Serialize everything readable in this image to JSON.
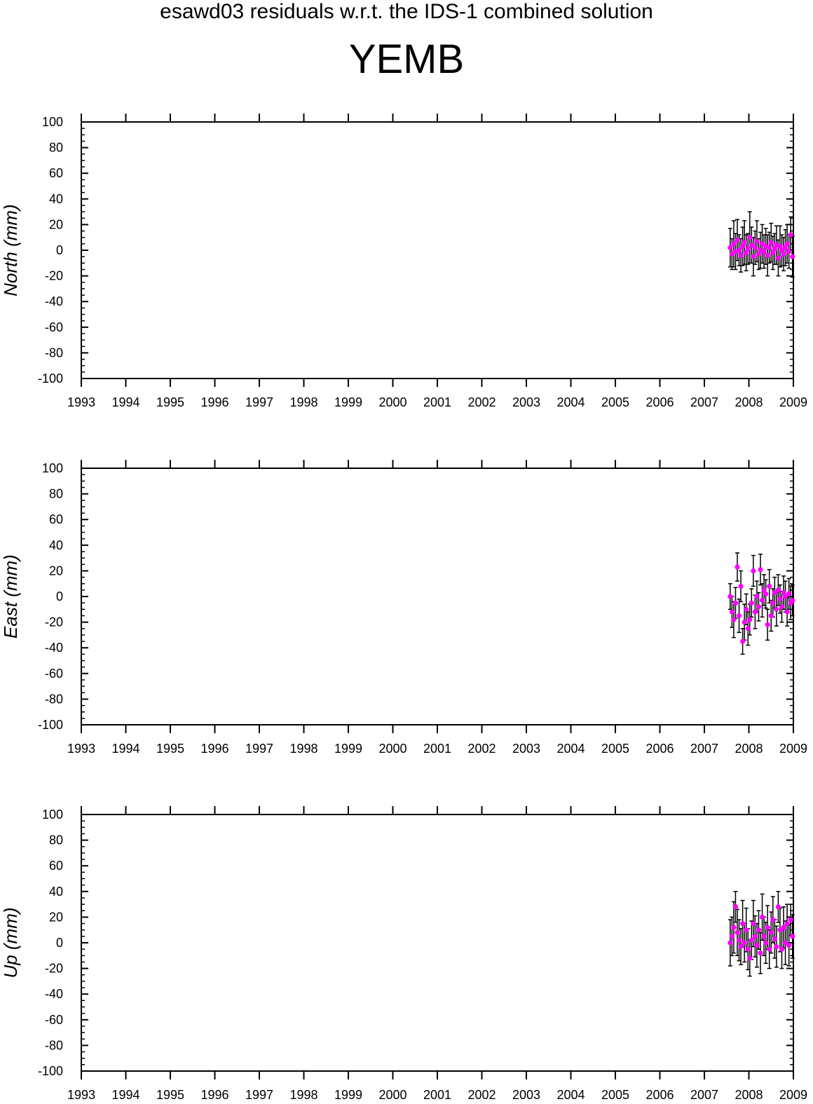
{
  "header": {
    "title": "esawd03 residuals w.r.t. the IDS-1 combined solution",
    "station": "YEMB"
  },
  "colors": {
    "point": "#ff00ff",
    "errorbar": "#000000",
    "axis": "#000000"
  },
  "chart_data": [
    {
      "type": "scatter",
      "ylabel": "North (mm)",
      "xlim": [
        1993,
        2009
      ],
      "ylim": [
        -100,
        100
      ],
      "xticks": [
        1993,
        1994,
        1995,
        1996,
        1997,
        1998,
        1999,
        2000,
        2001,
        2002,
        2003,
        2004,
        2005,
        2006,
        2007,
        2008,
        2009
      ],
      "yticks": [
        -100,
        -80,
        -60,
        -40,
        -20,
        0,
        20,
        40,
        60,
        80,
        100
      ],
      "grid": false,
      "series": [
        {
          "x": [
            2007.58,
            2007.62,
            2007.66,
            2007.7,
            2007.74,
            2007.78,
            2007.82,
            2007.86,
            2007.9,
            2007.94,
            2007.98,
            2008.02,
            2008.06,
            2008.1,
            2008.14,
            2008.18,
            2008.22,
            2008.26,
            2008.3,
            2008.34,
            2008.38,
            2008.42,
            2008.46,
            2008.5,
            2008.54,
            2008.58,
            2008.62,
            2008.66,
            2008.7,
            2008.74,
            2008.78,
            2008.82,
            2008.86,
            2008.9,
            2008.94,
            2008.98
          ],
          "y": [
            2,
            -3,
            5,
            -1,
            8,
            0,
            -4,
            3,
            6,
            -2,
            1,
            10,
            4,
            -5,
            2,
            7,
            -3,
            0,
            5,
            -1,
            3,
            -4,
            2,
            6,
            -2,
            1,
            4,
            -6,
            3,
            0,
            -3,
            2,
            5,
            -1,
            12,
            -5
          ],
          "err": [
            15,
            12,
            18,
            14,
            16,
            12,
            13,
            15,
            17,
            14,
            12,
            20,
            14,
            15,
            13,
            16,
            12,
            14,
            15,
            13,
            14,
            16,
            12,
            15,
            13,
            12,
            15,
            14,
            16,
            12,
            13,
            14,
            15,
            13,
            14,
            16
          ]
        }
      ]
    },
    {
      "type": "scatter",
      "ylabel": "East (mm)",
      "xlim": [
        1993,
        2009
      ],
      "ylim": [
        -100,
        100
      ],
      "xticks": [
        1993,
        1994,
        1995,
        1996,
        1997,
        1998,
        1999,
        2000,
        2001,
        2002,
        2003,
        2004,
        2005,
        2006,
        2007,
        2008,
        2009
      ],
      "yticks": [
        -100,
        -80,
        -60,
        -40,
        -20,
        0,
        20,
        40,
        60,
        80,
        100
      ],
      "grid": false,
      "series": [
        {
          "x": [
            2007.58,
            2007.62,
            2007.66,
            2007.7,
            2007.74,
            2007.78,
            2007.82,
            2007.86,
            2007.9,
            2007.94,
            2007.98,
            2008.02,
            2008.06,
            2008.1,
            2008.14,
            2008.18,
            2008.22,
            2008.26,
            2008.3,
            2008.34,
            2008.38,
            2008.42,
            2008.46,
            2008.5,
            2008.54,
            2008.58,
            2008.62,
            2008.66,
            2008.7,
            2008.74,
            2008.78,
            2008.82,
            2008.86,
            2008.9,
            2008.94,
            2008.98
          ],
          "y": [
            0,
            -12,
            -18,
            -5,
            23,
            -15,
            8,
            -35,
            -20,
            -10,
            -25,
            -18,
            -5,
            20,
            -12,
            0,
            -8,
            21,
            -3,
            5,
            2,
            -22,
            8,
            -15,
            -5,
            3,
            -10,
            5,
            -2,
            -8,
            3,
            0,
            -12,
            2,
            -5,
            -3
          ],
          "err": [
            10,
            12,
            14,
            12,
            11,
            13,
            12,
            10,
            14,
            12,
            13,
            12,
            11,
            12,
            13,
            12,
            11,
            12,
            13,
            12,
            11,
            12,
            13,
            12,
            11,
            12,
            13,
            12,
            11,
            12,
            13,
            12,
            11,
            12,
            13,
            12
          ]
        }
      ]
    },
    {
      "type": "scatter",
      "ylabel": "Up (mm)",
      "xlim": [
        1993,
        2009
      ],
      "ylim": [
        -100,
        100
      ],
      "xticks": [
        1993,
        1994,
        1995,
        1996,
        1997,
        1998,
        1999,
        2000,
        2001,
        2002,
        2003,
        2004,
        2005,
        2006,
        2007,
        2008,
        2009
      ],
      "yticks": [
        -100,
        -80,
        -60,
        -40,
        -20,
        0,
        20,
        40,
        60,
        80,
        100
      ],
      "grid": false,
      "series": [
        {
          "x": [
            2007.58,
            2007.62,
            2007.66,
            2007.7,
            2007.74,
            2007.78,
            2007.82,
            2007.86,
            2007.9,
            2007.94,
            2007.98,
            2008.02,
            2008.06,
            2008.1,
            2008.14,
            2008.18,
            2008.22,
            2008.26,
            2008.3,
            2008.34,
            2008.38,
            2008.42,
            2008.46,
            2008.5,
            2008.54,
            2008.58,
            2008.62,
            2008.66,
            2008.7,
            2008.74,
            2008.78,
            2008.82,
            2008.86,
            2008.9,
            2008.94,
            2008.98
          ],
          "y": [
            0,
            5,
            12,
            28,
            8,
            2,
            -3,
            15,
            0,
            10,
            -5,
            -12,
            2,
            15,
            5,
            -2,
            10,
            -8,
            20,
            5,
            0,
            12,
            -5,
            8,
            18,
            3,
            -3,
            28,
            10,
            -5,
            12,
            0,
            15,
            -2,
            18,
            5
          ],
          "err": [
            18,
            15,
            20,
            12,
            18,
            16,
            14,
            18,
            15,
            17,
            16,
            14,
            15,
            18,
            16,
            17,
            15,
            16,
            18,
            15,
            16,
            17,
            15,
            16,
            18,
            15,
            16,
            12,
            17,
            15,
            16,
            17,
            15,
            16,
            12,
            17
          ]
        }
      ]
    }
  ]
}
